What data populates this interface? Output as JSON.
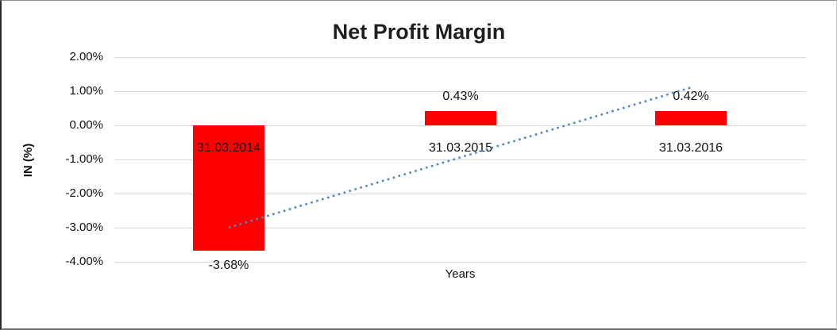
{
  "chart_data": {
    "type": "bar",
    "title": "Net Profit Margin",
    "xlabel": "Years",
    "ylabel": "IN (%)",
    "categories": [
      "31.03.2014",
      "31.03.2015",
      "31.03.2016"
    ],
    "values": [
      -3.68,
      0.43,
      0.42
    ],
    "value_labels": [
      "-3.68%",
      "0.43%",
      "0.42%"
    ],
    "bar_color": "#ff0000",
    "ylim": [
      -4,
      2
    ],
    "y_tick_step": 1,
    "y_tick_labels": [
      "2.00%",
      "1.00%",
      "0.00%",
      "-1.00%",
      "-2.00%",
      "-3.00%",
      "-4.00%"
    ],
    "grid": true,
    "gridline_color": "#d9d9d9",
    "legend": "none",
    "trendline": {
      "type": "linear",
      "style": "dotted",
      "color": "#4e86c9",
      "start_value_pct": -3.0,
      "end_value_pct": 1.11
    }
  }
}
